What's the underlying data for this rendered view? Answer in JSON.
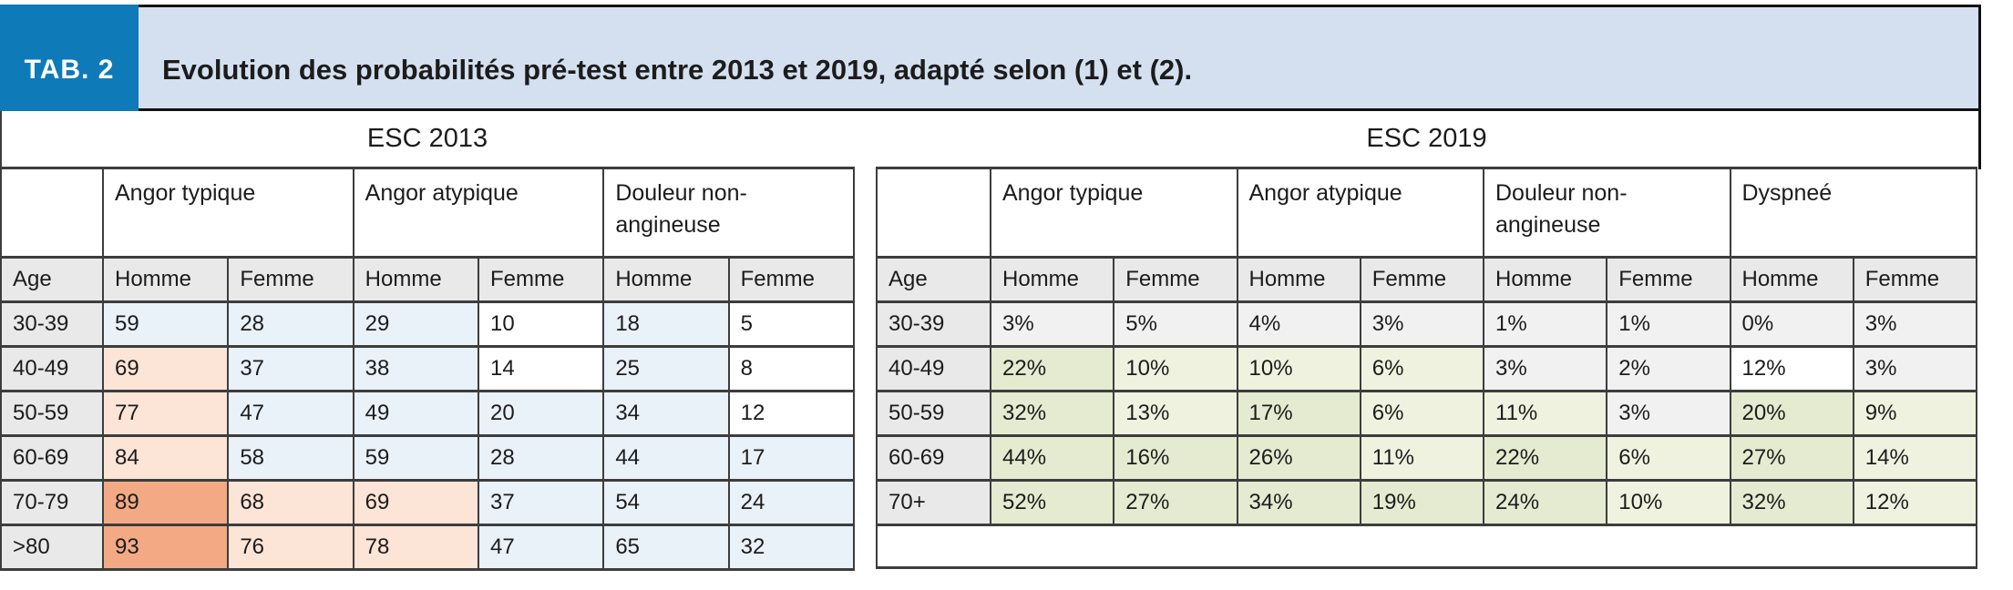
{
  "header": {
    "tab_label": "TAB. 2",
    "title": "Evolution des probabilités pré-test entre 2013 et 2019, adapté selon (1) et (2)."
  },
  "colors": {
    "tab_blue": "#0e7ab8",
    "banner_blue": "#d4e0ef",
    "border_dark": "#3d3d3d",
    "header_gray": "#e9e9e9"
  },
  "palette": {
    "white": "#ffffff",
    "blue": "#e9f1f9",
    "peach": "#fce4d6",
    "salmon": "#f3aa84",
    "gray": "#f1f1f1",
    "green": "#e4ebd0",
    "pale_green": "#f0f2e0"
  },
  "tables": [
    {
      "caption": "ESC 2013",
      "group_headers": [
        "",
        "Angor typique",
        "Angor atypique",
        "Douleur non-angineuse"
      ],
      "col_headers": [
        "Age",
        "Homme",
        "Femme",
        "Homme",
        "Femme",
        "Homme",
        "Femme"
      ],
      "rows": [
        {
          "age": "30-39",
          "cells": [
            {
              "v": "59",
              "bg": "blue"
            },
            {
              "v": "28",
              "bg": "blue"
            },
            {
              "v": "29",
              "bg": "blue"
            },
            {
              "v": "10",
              "bg": "white"
            },
            {
              "v": "18",
              "bg": "blue"
            },
            {
              "v": "5",
              "bg": "white"
            }
          ]
        },
        {
          "age": "40-49",
          "cells": [
            {
              "v": "69",
              "bg": "peach"
            },
            {
              "v": "37",
              "bg": "blue"
            },
            {
              "v": "38",
              "bg": "blue"
            },
            {
              "v": "14",
              "bg": "white"
            },
            {
              "v": "25",
              "bg": "blue"
            },
            {
              "v": "8",
              "bg": "white"
            }
          ]
        },
        {
          "age": "50-59",
          "cells": [
            {
              "v": "77",
              "bg": "peach"
            },
            {
              "v": "47",
              "bg": "blue"
            },
            {
              "v": "49",
              "bg": "blue"
            },
            {
              "v": "20",
              "bg": "blue"
            },
            {
              "v": "34",
              "bg": "blue"
            },
            {
              "v": "12",
              "bg": "white"
            }
          ]
        },
        {
          "age": "60-69",
          "cells": [
            {
              "v": "84",
              "bg": "peach"
            },
            {
              "v": "58",
              "bg": "blue"
            },
            {
              "v": "59",
              "bg": "blue"
            },
            {
              "v": "28",
              "bg": "blue"
            },
            {
              "v": "44",
              "bg": "blue"
            },
            {
              "v": "17",
              "bg": "blue"
            }
          ]
        },
        {
          "age": "70-79",
          "cells": [
            {
              "v": "89",
              "bg": "salmon"
            },
            {
              "v": "68",
              "bg": "peach"
            },
            {
              "v": "69",
              "bg": "peach"
            },
            {
              "v": "37",
              "bg": "blue"
            },
            {
              "v": "54",
              "bg": "blue"
            },
            {
              "v": "24",
              "bg": "blue"
            }
          ]
        },
        {
          "age": ">80",
          "cells": [
            {
              "v": "93",
              "bg": "salmon"
            },
            {
              "v": "76",
              "bg": "peach"
            },
            {
              "v": "78",
              "bg": "peach"
            },
            {
              "v": "47",
              "bg": "blue"
            },
            {
              "v": "65",
              "bg": "blue"
            },
            {
              "v": "32",
              "bg": "blue"
            }
          ]
        }
      ],
      "trailing_empty_row": false
    },
    {
      "caption": "ESC 2019",
      "group_headers": [
        "",
        "Angor typique",
        "Angor atypique",
        "Douleur non-angineuse",
        "Dyspneé"
      ],
      "col_headers": [
        "Age",
        "Homme",
        "Femme",
        "Homme",
        "Femme",
        "Homme",
        "Femme",
        "Homme",
        "Femme"
      ],
      "rows": [
        {
          "age": "30-39",
          "cells": [
            {
              "v": "3%",
              "bg": "gray"
            },
            {
              "v": "5%",
              "bg": "gray"
            },
            {
              "v": "4%",
              "bg": "gray"
            },
            {
              "v": "3%",
              "bg": "gray"
            },
            {
              "v": "1%",
              "bg": "gray"
            },
            {
              "v": "1%",
              "bg": "gray"
            },
            {
              "v": "0%",
              "bg": "gray"
            },
            {
              "v": "3%",
              "bg": "gray"
            }
          ]
        },
        {
          "age": "40-49",
          "cells": [
            {
              "v": "22%",
              "bg": "green"
            },
            {
              "v": "10%",
              "bg": "pale_green"
            },
            {
              "v": "10%",
              "bg": "pale_green"
            },
            {
              "v": "6%",
              "bg": "pale_green"
            },
            {
              "v": "3%",
              "bg": "gray"
            },
            {
              "v": "2%",
              "bg": "gray"
            },
            {
              "v": "12%",
              "bg": "white"
            },
            {
              "v": "3%",
              "bg": "gray"
            }
          ]
        },
        {
          "age": "50-59",
          "cells": [
            {
              "v": "32%",
              "bg": "green"
            },
            {
              "v": "13%",
              "bg": "pale_green"
            },
            {
              "v": "17%",
              "bg": "green"
            },
            {
              "v": "6%",
              "bg": "pale_green"
            },
            {
              "v": "11%",
              "bg": "pale_green"
            },
            {
              "v": "3%",
              "bg": "gray"
            },
            {
              "v": "20%",
              "bg": "green"
            },
            {
              "v": "9%",
              "bg": "pale_green"
            }
          ]
        },
        {
          "age": "60-69",
          "cells": [
            {
              "v": "44%",
              "bg": "green"
            },
            {
              "v": "16%",
              "bg": "green"
            },
            {
              "v": "26%",
              "bg": "green"
            },
            {
              "v": "11%",
              "bg": "pale_green"
            },
            {
              "v": "22%",
              "bg": "green"
            },
            {
              "v": "6%",
              "bg": "pale_green"
            },
            {
              "v": "27%",
              "bg": "green"
            },
            {
              "v": "14%",
              "bg": "pale_green"
            }
          ]
        },
        {
          "age": "70+",
          "cells": [
            {
              "v": "52%",
              "bg": "green"
            },
            {
              "v": "27%",
              "bg": "green"
            },
            {
              "v": "34%",
              "bg": "green"
            },
            {
              "v": "19%",
              "bg": "green"
            },
            {
              "v": "24%",
              "bg": "green"
            },
            {
              "v": "10%",
              "bg": "pale_green"
            },
            {
              "v": "32%",
              "bg": "green"
            },
            {
              "v": "12%",
              "bg": "pale_green"
            }
          ]
        }
      ],
      "trailing_empty_row": true
    }
  ]
}
